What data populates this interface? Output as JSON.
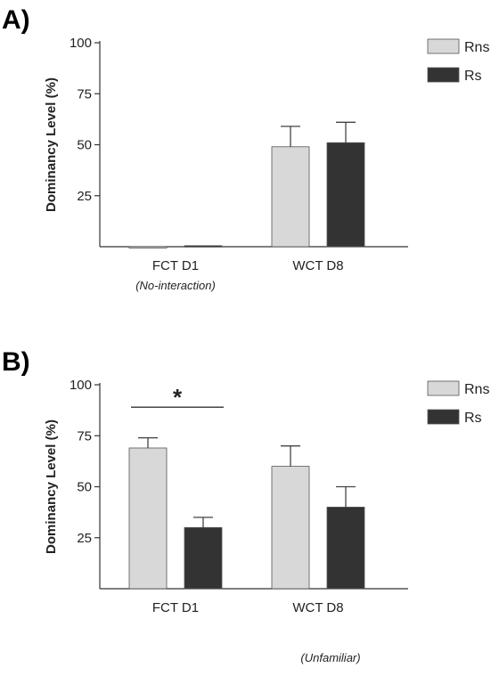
{
  "chart_data": [
    {
      "type": "bar",
      "panel_label": "A)",
      "ylabel": "Dominancy Level (%)",
      "ylim": [
        0,
        100
      ],
      "yticks": [
        25,
        50,
        75,
        100
      ],
      "categories": [
        "FCT D1",
        "WCT D8"
      ],
      "category_sublabels": [
        "(No-interaction)",
        ""
      ],
      "legend_position": "top-right",
      "series": [
        {
          "name": "Rns",
          "color": "#d8d8d8",
          "values": [
            0,
            49
          ],
          "errors": [
            0,
            10
          ]
        },
        {
          "name": "Rs",
          "color": "#333333",
          "values": [
            0.5,
            51
          ],
          "errors": [
            0,
            10
          ]
        }
      ],
      "significance": []
    },
    {
      "type": "bar",
      "panel_label": "B)",
      "ylabel": "Dominancy Level (%)",
      "ylim": [
        0,
        100
      ],
      "yticks": [
        25,
        50,
        75,
        100
      ],
      "categories": [
        "FCT D1",
        "WCT D8"
      ],
      "category_sublabels": [
        "",
        "(Unfamiliar)"
      ],
      "legend_position": "top-right",
      "series": [
        {
          "name": "Rns",
          "color": "#d8d8d8",
          "values": [
            69,
            60
          ],
          "errors": [
            5,
            10
          ]
        },
        {
          "name": "Rs",
          "color": "#333333",
          "values": [
            30,
            40
          ],
          "errors": [
            5,
            10
          ]
        }
      ],
      "significance": [
        {
          "category_index": 0,
          "symbol": "*"
        }
      ]
    }
  ]
}
